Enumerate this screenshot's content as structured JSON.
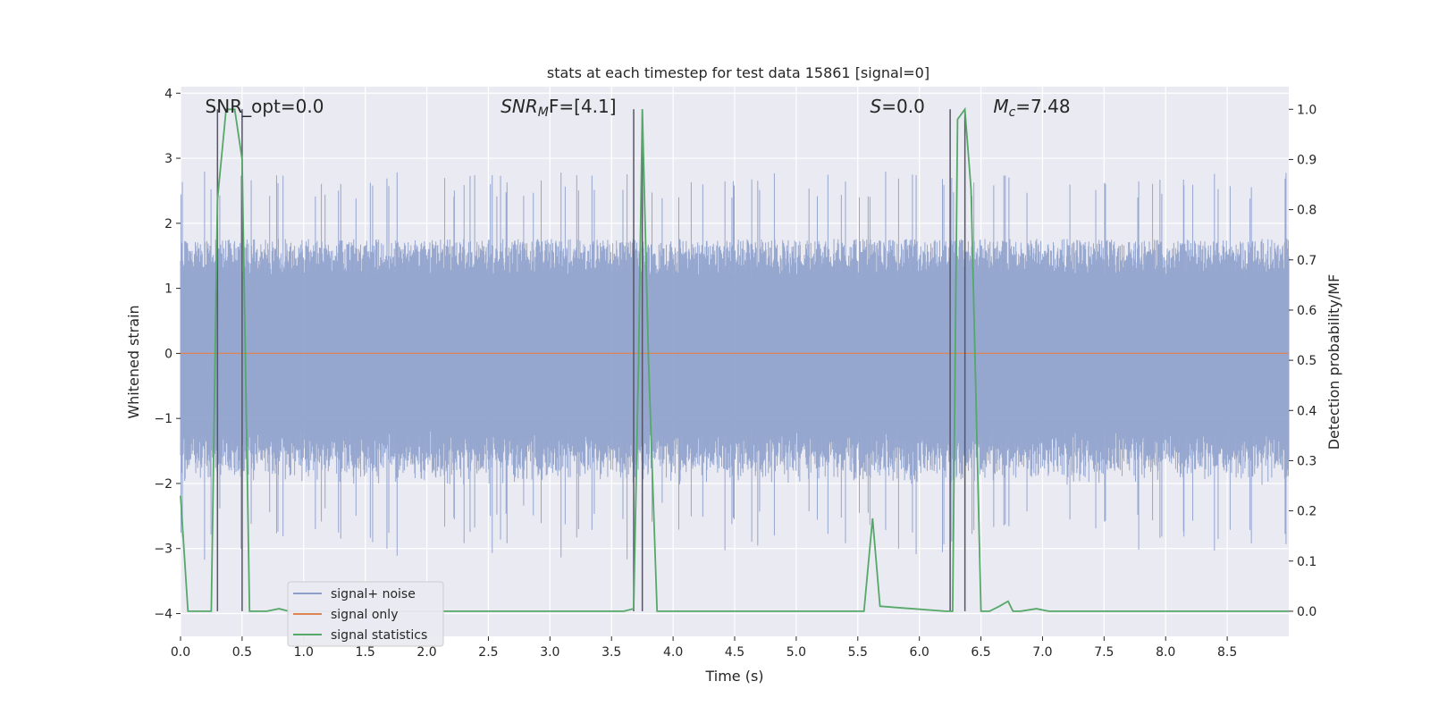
{
  "chart_data": {
    "type": "line",
    "title": "stats at each timestep for test data 15861 [signal=0]",
    "xlabel": "Time (s)",
    "ylabel": "Whitened strain",
    "ylabel_right": "Detection probability/MF",
    "xlim": [
      0.0,
      9.0
    ],
    "ylim": [
      -4.35,
      4.1
    ],
    "ylim_right": [
      -0.05,
      1.045
    ],
    "x_ticks": [
      "0.0",
      "0.5",
      "1.0",
      "1.5",
      "2.0",
      "2.5",
      "3.0",
      "3.5",
      "4.0",
      "4.5",
      "5.0",
      "5.5",
      "6.0",
      "6.5",
      "7.0",
      "7.5",
      "8.0",
      "8.5"
    ],
    "y_ticks": [
      "4",
      "3",
      "2",
      "1",
      "0",
      "−1",
      "−2",
      "−3",
      "−4"
    ],
    "y_ticks_right": [
      "1.0",
      "0.9",
      "0.8",
      "0.7",
      "0.6",
      "0.5",
      "0.4",
      "0.3",
      "0.2",
      "0.1",
      "0.0"
    ],
    "grid": true,
    "legend_position": "lower-left",
    "annotations": [
      {
        "text": "SNR_opt=0.0",
        "x": 0.2,
        "y": 3.8,
        "italic": false
      },
      {
        "text": "SNR",
        "sub": "M",
        "suffix": "F=[4.1]",
        "x": 2.6,
        "y": 3.8,
        "italic": true
      },
      {
        "text": "S",
        "suffix": "=0.0",
        "x": 5.6,
        "y": 3.8,
        "italic": true
      },
      {
        "text": "M",
        "sub": "c",
        "suffix": "=7.48",
        "x": 6.6,
        "y": 3.8,
        "italic": true
      }
    ],
    "vertical_lines": [
      0.3,
      0.5,
      3.68,
      3.75,
      6.25,
      6.37
    ],
    "series": [
      {
        "name": "signal+ noise",
        "color": "#8c9fcb",
        "kind": "noise",
        "typical_amplitude": 1.6,
        "peak_amplitude_max": 2.8,
        "peak_amplitude_min": -3.4
      },
      {
        "name": "signal only",
        "color": "#dd8452",
        "kind": "flat",
        "value": 0.0
      },
      {
        "name": "signal statistics",
        "color": "#55a868",
        "axis": "right",
        "x": [
          0.0,
          0.06,
          0.25,
          0.3,
          0.37,
          0.44,
          0.5,
          0.56,
          0.7,
          0.8,
          0.88,
          1.0,
          3.6,
          3.68,
          3.72,
          3.75,
          3.8,
          3.87,
          5.55,
          5.62,
          5.68,
          6.21,
          6.27,
          6.31,
          6.37,
          6.42,
          6.5,
          6.57,
          6.65,
          6.72,
          6.76,
          6.82,
          6.95,
          7.05,
          7.12,
          9.0
        ],
        "values": [
          0.23,
          0.0,
          0.0,
          0.82,
          1.0,
          1.0,
          0.9,
          0.0,
          0.0,
          0.005,
          0.0,
          0.0,
          0.0,
          0.005,
          0.5,
          1.0,
          0.5,
          0.0,
          0.0,
          0.185,
          0.01,
          0.0,
          0.0,
          0.98,
          1.0,
          0.84,
          0.0,
          0.0,
          0.01,
          0.02,
          0.0,
          0.0,
          0.005,
          0.0,
          0.0,
          0.0
        ]
      }
    ]
  }
}
